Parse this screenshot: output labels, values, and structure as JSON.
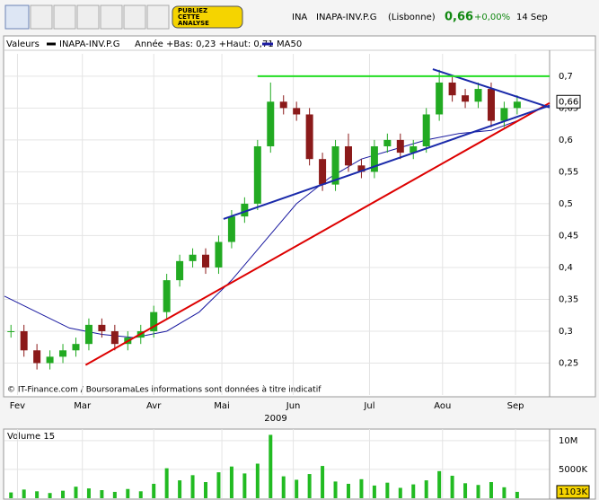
{
  "header": {
    "symbol": "INA",
    "name": "INAPA-INV.P.G",
    "market": "(Lisbonne)",
    "price": "0,66",
    "change": "+0,00%",
    "date": "14 Sep",
    "ad": [
      "PUBLIEZ",
      "CETTE",
      "ANALYSE"
    ]
  },
  "chart_data": [
    {
      "type": "candlestick",
      "legend": [
        "Valeurs",
        "INAPA-INV.P.G",
        "Année +Bas: 0,23 +Haut: 0,71",
        "MA50"
      ],
      "note": "© IT-Finance.com / BoursoramaLes informations sont données à titre indicatif",
      "year": "2009",
      "up_color": "#22aa22",
      "down_color": "#8b1a1a",
      "x": [
        2,
        6,
        10,
        14,
        18,
        22,
        26,
        30,
        34,
        38,
        42,
        46,
        50,
        54,
        58,
        62,
        66,
        70,
        74,
        78,
        82,
        86,
        90,
        94,
        98,
        102,
        106,
        110,
        114,
        118,
        122,
        126,
        130,
        134,
        138,
        142,
        146,
        150,
        154,
        158
      ],
      "open": [
        0.3,
        0.3,
        0.27,
        0.25,
        0.26,
        0.27,
        0.28,
        0.31,
        0.3,
        0.28,
        0.29,
        0.3,
        0.33,
        0.38,
        0.41,
        0.42,
        0.4,
        0.44,
        0.48,
        0.5,
        0.59,
        0.66,
        0.65,
        0.64,
        0.57,
        0.53,
        0.59,
        0.56,
        0.55,
        0.59,
        0.6,
        0.58,
        0.59,
        0.64,
        0.69,
        0.67,
        0.66,
        0.68,
        0.63,
        0.65
      ],
      "high": [
        0.31,
        0.31,
        0.28,
        0.27,
        0.28,
        0.29,
        0.32,
        0.32,
        0.31,
        0.3,
        0.31,
        0.34,
        0.39,
        0.42,
        0.43,
        0.43,
        0.45,
        0.49,
        0.51,
        0.6,
        0.69,
        0.67,
        0.66,
        0.65,
        0.58,
        0.6,
        0.61,
        0.57,
        0.6,
        0.61,
        0.61,
        0.6,
        0.65,
        0.71,
        0.7,
        0.68,
        0.69,
        0.69,
        0.66,
        0.67
      ],
      "low": [
        0.29,
        0.26,
        0.24,
        0.24,
        0.25,
        0.26,
        0.27,
        0.29,
        0.27,
        0.27,
        0.28,
        0.29,
        0.32,
        0.37,
        0.4,
        0.39,
        0.39,
        0.43,
        0.47,
        0.49,
        0.58,
        0.64,
        0.63,
        0.56,
        0.52,
        0.52,
        0.55,
        0.54,
        0.54,
        0.58,
        0.57,
        0.57,
        0.58,
        0.63,
        0.66,
        0.65,
        0.65,
        0.62,
        0.62,
        0.64
      ],
      "close": [
        0.3,
        0.27,
        0.25,
        0.26,
        0.27,
        0.28,
        0.31,
        0.3,
        0.28,
        0.29,
        0.3,
        0.33,
        0.38,
        0.41,
        0.42,
        0.4,
        0.44,
        0.48,
        0.5,
        0.59,
        0.66,
        0.65,
        0.64,
        0.57,
        0.53,
        0.59,
        0.56,
        0.55,
        0.59,
        0.6,
        0.58,
        0.59,
        0.64,
        0.69,
        0.67,
        0.66,
        0.68,
        0.63,
        0.65,
        0.66
      ],
      "ma50": {
        "name": "MA50",
        "color": "#1a1aa0",
        "x": [
          0,
          10,
          20,
          30,
          40,
          50,
          60,
          70,
          80,
          90,
          100,
          110,
          120,
          130,
          140,
          150,
          158
        ],
        "values": [
          0.355,
          0.33,
          0.305,
          0.295,
          0.29,
          0.3,
          0.33,
          0.38,
          0.44,
          0.5,
          0.54,
          0.57,
          0.585,
          0.6,
          0.61,
          0.615,
          0.63
        ]
      },
      "trendlines": [
        {
          "color": "#dd0000",
          "x": [
            25,
            168
          ],
          "values": [
            0.247,
            0.658
          ]
        },
        {
          "color": "#1a2aaa",
          "x": [
            67.5,
            168
          ],
          "values": [
            0.476,
            0.654
          ]
        },
        {
          "color": "#1a2aaa",
          "x": [
            132,
            168
          ],
          "values": [
            0.711,
            0.651
          ]
        },
        {
          "color": "#22dd22",
          "x": [
            78,
            168
          ],
          "values": [
            0.7,
            0.7
          ]
        }
      ],
      "last": {
        "value": 0.66,
        "label": "0,66"
      },
      "xlim": [
        0,
        168
      ],
      "ylim": [
        0.2,
        0.735
      ],
      "xticks": [
        {
          "value": 4,
          "label": "Fev"
        },
        {
          "value": 24,
          "label": "Mar"
        },
        {
          "value": 46,
          "label": "Avr"
        },
        {
          "value": 67,
          "label": "Mai"
        },
        {
          "value": 89,
          "label": "Jun"
        },
        {
          "value": 112.5,
          "label": "Jul"
        },
        {
          "value": 135,
          "label": "Aou"
        },
        {
          "value": 157.5,
          "label": "Sep"
        }
      ],
      "yticks": [
        {
          "value": 0.25,
          "label": "0,25"
        },
        {
          "value": 0.3,
          "label": "0,3"
        },
        {
          "value": 0.35,
          "label": "0,35"
        },
        {
          "value": 0.4,
          "label": "0,4"
        },
        {
          "value": 0.45,
          "label": "0,45"
        },
        {
          "value": 0.5,
          "label": "0,5"
        },
        {
          "value": 0.55,
          "label": "0,55"
        },
        {
          "value": 0.6,
          "label": "0,6"
        },
        {
          "value": 0.65,
          "label": "0,65"
        },
        {
          "value": 0.7,
          "label": "0,7"
        }
      ]
    },
    {
      "type": "bar",
      "title": "Volume 15",
      "color": "#22bb22",
      "x": [
        2,
        6,
        10,
        14,
        18,
        22,
        26,
        30,
        34,
        38,
        42,
        46,
        50,
        54,
        58,
        62,
        66,
        70,
        74,
        78,
        82,
        86,
        90,
        94,
        98,
        102,
        106,
        110,
        114,
        118,
        122,
        126,
        130,
        134,
        138,
        142,
        146,
        150,
        154,
        158
      ],
      "values": [
        1000000,
        1500000,
        1200000,
        900000,
        1300000,
        2000000,
        1700000,
        1400000,
        1100000,
        1600000,
        1200000,
        2500000,
        5200000,
        3100000,
        4000000,
        2800000,
        4500000,
        5500000,
        4300000,
        6000000,
        11000000,
        3800000,
        3200000,
        4200000,
        5600000,
        2900000,
        2500000,
        3300000,
        2200000,
        2700000,
        1800000,
        2400000,
        3100000,
        4700000,
        3900000,
        2600000,
        2300000,
        2800000,
        1900000,
        1103000
      ],
      "xlim": [
        0,
        168
      ],
      "ylim": [
        0,
        12000000
      ],
      "yticks": [
        {
          "value": 5000000,
          "label": "5000K"
        },
        {
          "value": 10000000,
          "label": "10M"
        }
      ],
      "last": {
        "value": 1103000,
        "label": "1103K"
      }
    }
  ]
}
